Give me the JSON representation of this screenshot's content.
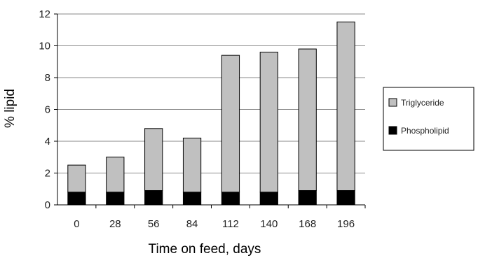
{
  "chart_data": {
    "type": "bar",
    "stacked": true,
    "categories": [
      "0",
      "28",
      "56",
      "84",
      "112",
      "140",
      "168",
      "196"
    ],
    "series": [
      {
        "name": "Phospholipid",
        "values": [
          0.8,
          0.8,
          0.9,
          0.8,
          0.8,
          0.8,
          0.9,
          0.9
        ],
        "color": "#000000"
      },
      {
        "name": "Triglyceride",
        "values": [
          1.7,
          2.2,
          3.9,
          3.4,
          8.6,
          8.8,
          8.9,
          10.6
        ],
        "color": "#c0c0c0"
      }
    ],
    "xlabel": "Time on feed, days",
    "ylabel": "% lipid",
    "ylim": [
      0,
      12
    ],
    "yticks": [
      "0",
      "2",
      "4",
      "6",
      "8",
      "10",
      "12"
    ],
    "grid": true,
    "legend": {
      "position": "right",
      "entries": [
        "Triglyceride",
        "Phospholipid"
      ]
    }
  }
}
